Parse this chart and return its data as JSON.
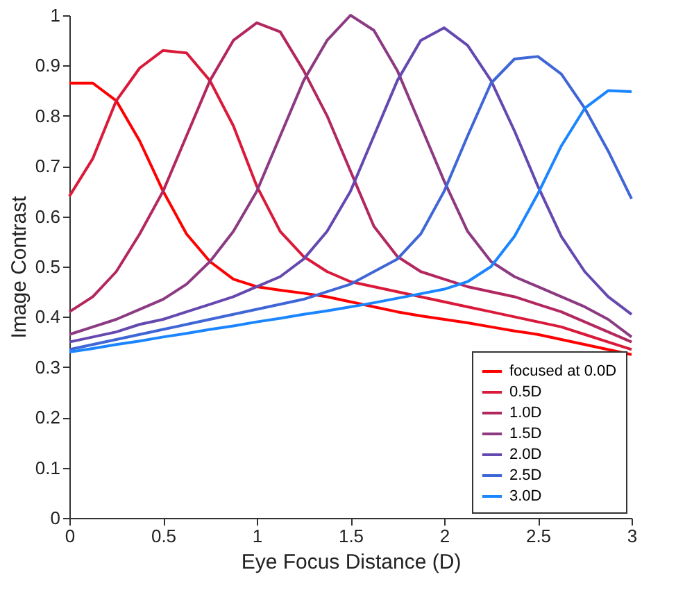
{
  "chart_data": {
    "type": "line",
    "xlabel": "Eye Focus Distance (D)",
    "ylabel": "Image Contrast",
    "x": [
      0,
      0.125,
      0.25,
      0.375,
      0.5,
      0.625,
      0.75,
      0.875,
      1,
      1.125,
      1.25,
      1.375,
      1.5,
      1.625,
      1.75,
      1.875,
      2,
      2.125,
      2.25,
      2.375,
      2.5,
      2.625,
      2.75,
      2.875,
      3
    ],
    "series": [
      {
        "name": "focused at 0.0D",
        "color": "#ff0000",
        "values": [
          0.865,
          0.865,
          0.83,
          0.75,
          0.65,
          0.565,
          0.51,
          0.475,
          0.46,
          0.453,
          0.447,
          0.44,
          0.43,
          0.42,
          0.41,
          0.402,
          0.395,
          0.388,
          0.38,
          0.372,
          0.365,
          0.355,
          0.345,
          0.335,
          0.325
        ]
      },
      {
        "name": "0.5D",
        "color": "#d91a3a",
        "values": [
          0.64,
          0.715,
          0.83,
          0.895,
          0.93,
          0.925,
          0.87,
          0.78,
          0.66,
          0.57,
          0.52,
          0.49,
          0.47,
          0.46,
          0.45,
          0.44,
          0.43,
          0.42,
          0.41,
          0.4,
          0.39,
          0.38,
          0.365,
          0.35,
          0.335
        ]
      },
      {
        "name": "1.0D",
        "color": "#b3275f",
        "values": [
          0.41,
          0.44,
          0.49,
          0.565,
          0.65,
          0.76,
          0.87,
          0.95,
          0.985,
          0.967,
          0.89,
          0.8,
          0.69,
          0.58,
          0.52,
          0.49,
          0.475,
          0.46,
          0.45,
          0.44,
          0.425,
          0.41,
          0.39,
          0.37,
          0.35
        ]
      },
      {
        "name": "1.5D",
        "color": "#8c3a82",
        "values": [
          0.365,
          0.38,
          0.395,
          0.415,
          0.435,
          0.465,
          0.51,
          0.57,
          0.65,
          0.76,
          0.87,
          0.95,
          1.0,
          0.97,
          0.89,
          0.78,
          0.67,
          0.57,
          0.51,
          0.48,
          0.46,
          0.44,
          0.42,
          0.395,
          0.36
        ]
      },
      {
        "name": "2.0D",
        "color": "#6548b0",
        "values": [
          0.35,
          0.36,
          0.37,
          0.385,
          0.395,
          0.41,
          0.425,
          0.44,
          0.46,
          0.48,
          0.515,
          0.57,
          0.65,
          0.76,
          0.87,
          0.95,
          0.975,
          0.94,
          0.87,
          0.77,
          0.66,
          0.56,
          0.49,
          0.44,
          0.405
        ]
      },
      {
        "name": "2.5D",
        "color": "#3f66d6",
        "values": [
          0.335,
          0.345,
          0.355,
          0.365,
          0.375,
          0.385,
          0.395,
          0.405,
          0.415,
          0.425,
          0.435,
          0.45,
          0.465,
          0.49,
          0.515,
          0.565,
          0.65,
          0.76,
          0.865,
          0.913,
          0.918,
          0.883,
          0.815,
          0.73,
          0.635
        ]
      },
      {
        "name": "3.0D",
        "color": "#1a85ff",
        "values": [
          0.33,
          0.337,
          0.345,
          0.352,
          0.36,
          0.367,
          0.375,
          0.382,
          0.39,
          0.397,
          0.405,
          0.412,
          0.42,
          0.428,
          0.437,
          0.446,
          0.455,
          0.47,
          0.5,
          0.56,
          0.645,
          0.74,
          0.815,
          0.85,
          0.848
        ]
      }
    ],
    "xlim": [
      0,
      3
    ],
    "xticks": [
      0,
      0.5,
      1,
      1.5,
      2,
      2.5,
      3
    ],
    "ylim": [
      0,
      1
    ],
    "yticks": [
      0,
      0.1,
      0.2,
      0.3,
      0.4,
      0.5,
      0.6,
      0.7,
      0.8,
      0.9,
      1
    ],
    "grid": false,
    "legend": "bottom right",
    "marker": "none",
    "line_style": "solid"
  }
}
